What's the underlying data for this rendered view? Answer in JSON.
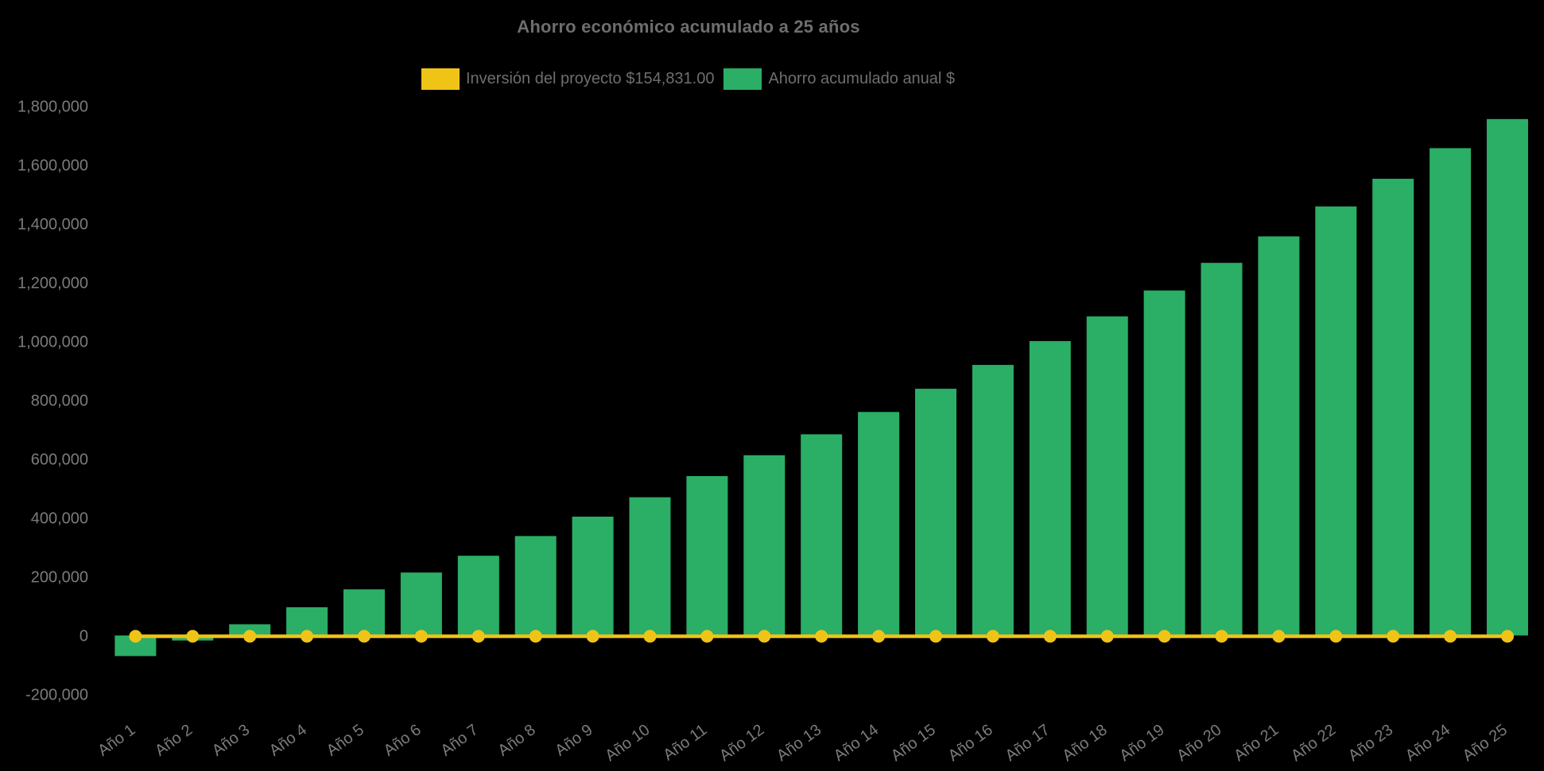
{
  "page": {
    "background": "#000000"
  },
  "chart_data": {
    "type": "bar",
    "title": "Ahorro económico acumulado a 25 años",
    "legend_position": "top",
    "grid": false,
    "categories": [
      "Año 1",
      "Año 2",
      "Año 3",
      "Año 4",
      "Año 5",
      "Año 6",
      "Año 7",
      "Año 8",
      "Año 9",
      "Año 10",
      "Año 11",
      "Año 12",
      "Año 13",
      "Año 14",
      "Año 15",
      "Año 16",
      "Año 17",
      "Año 18",
      "Año 19",
      "Año 20",
      "Año 21",
      "Año 22",
      "Año 23",
      "Año 24",
      "Año 25"
    ],
    "series": [
      {
        "name": "Inversión del proyecto $154,831.00",
        "type": "line",
        "color": "#F0C417",
        "marker": "circle",
        "values": [
          0,
          0,
          0,
          0,
          0,
          0,
          0,
          0,
          0,
          0,
          0,
          0,
          0,
          0,
          0,
          0,
          0,
          0,
          0,
          0,
          0,
          0,
          0,
          0,
          0
        ]
      },
      {
        "name": "Ahorro acumulado anual $",
        "type": "bar",
        "color": "#2BAE66",
        "values": [
          -70000,
          -17000,
          38000,
          96000,
          157000,
          214000,
          271000,
          338000,
          404000,
          470000,
          542000,
          613000,
          684000,
          760000,
          839000,
          920000,
          1001000,
          1085000,
          1173000,
          1267000,
          1357000,
          1459000,
          1553000,
          1657000,
          1756000
        ]
      }
    ],
    "ylim": [
      -200000,
      1800000
    ],
    "y_ticks": [
      {
        "v": 1800000,
        "label": "1,800,000"
      },
      {
        "v": 1600000,
        "label": "1,600,000"
      },
      {
        "v": 1400000,
        "label": "1,400,000"
      },
      {
        "v": 1200000,
        "label": "1,200,000"
      },
      {
        "v": 1000000,
        "label": "1,000,000"
      },
      {
        "v": 800000,
        "label": "800,000"
      },
      {
        "v": 600000,
        "label": "600,000"
      },
      {
        "v": 400000,
        "label": "400,000"
      },
      {
        "v": 200000,
        "label": "200,000"
      },
      {
        "v": 0,
        "label": "0"
      },
      {
        "v": -200000,
        "label": "-200,000"
      }
    ],
    "x_tick_rotation": -36
  },
  "colors": {
    "title_text": "#6E6E6E",
    "tick_label": "#7B7B7B",
    "background": "#000000"
  }
}
